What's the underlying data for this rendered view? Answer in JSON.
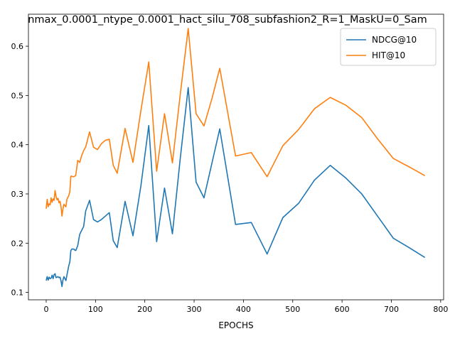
{
  "chart_data": {
    "type": "line",
    "title": "nmax_0.0001_ntype_0.0001_hact_silu_708_subfashion2_R=1_MaskU=0_Sam",
    "xlabel": "EPOCHS",
    "ylabel": "",
    "xlim": [
      -36,
      806
    ],
    "ylim": [
      0.085,
      0.665
    ],
    "xticks": [
      0,
      100,
      200,
      300,
      400,
      500,
      600,
      700,
      800
    ],
    "xtick_labels": [
      "0",
      "100",
      "200",
      "300",
      "400",
      "500",
      "600",
      "700",
      "800"
    ],
    "yticks": [
      0.1,
      0.2,
      0.3,
      0.4,
      0.5,
      0.6
    ],
    "ytick_labels": [
      "0.1",
      "0.2",
      "0.3",
      "0.4",
      "0.5",
      "0.6"
    ],
    "grid": false,
    "legend_position": "top-right",
    "series": [
      {
        "name": "NDCG@10",
        "color": "#1f77b4",
        "x": [
          0,
          2,
          4,
          6,
          8,
          10,
          12,
          14,
          16,
          18,
          20,
          22,
          24,
          26,
          28,
          30,
          32,
          34,
          36,
          38,
          40,
          42,
          44,
          46,
          48,
          50,
          52,
          54,
          56,
          58,
          60,
          64,
          68,
          72,
          76,
          80,
          88,
          96,
          104,
          112,
          120,
          128,
          136,
          144,
          160,
          176,
          192,
          208,
          224,
          240,
          256,
          272,
          288,
          304,
          320,
          336,
          352,
          384,
          416,
          448,
          480,
          512,
          544,
          576,
          608,
          640,
          672,
          704,
          736,
          768
        ],
        "y": [
          0.124,
          0.132,
          0.125,
          0.131,
          0.128,
          0.129,
          0.135,
          0.128,
          0.136,
          0.138,
          0.13,
          0.131,
          0.132,
          0.13,
          0.131,
          0.124,
          0.112,
          0.125,
          0.132,
          0.128,
          0.124,
          0.135,
          0.145,
          0.155,
          0.162,
          0.185,
          0.188,
          0.188,
          0.188,
          0.186,
          0.185,
          0.195,
          0.218,
          0.226,
          0.234,
          0.265,
          0.287,
          0.248,
          0.243,
          0.248,
          0.255,
          0.262,
          0.205,
          0.191,
          0.285,
          0.215,
          0.316,
          0.439,
          0.203,
          0.312,
          0.219,
          0.373,
          0.516,
          0.324,
          0.292,
          0.362,
          0.432,
          0.238,
          0.242,
          0.178,
          0.252,
          0.281,
          0.328,
          0.358,
          0.332,
          0.3,
          0.255,
          0.21,
          0.191,
          0.171
        ]
      },
      {
        "name": "HIT@10",
        "color": "#ff7f0e",
        "x": [
          0,
          2,
          4,
          6,
          8,
          10,
          12,
          14,
          16,
          18,
          20,
          22,
          24,
          26,
          28,
          30,
          32,
          34,
          36,
          38,
          40,
          42,
          44,
          46,
          48,
          50,
          52,
          54,
          56,
          58,
          60,
          64,
          68,
          72,
          76,
          80,
          88,
          96,
          104,
          112,
          120,
          128,
          136,
          144,
          160,
          176,
          192,
          208,
          224,
          240,
          256,
          272,
          288,
          304,
          320,
          336,
          352,
          384,
          416,
          448,
          480,
          512,
          544,
          576,
          608,
          640,
          672,
          704,
          736,
          768
        ],
        "y": [
          0.27,
          0.289,
          0.274,
          0.28,
          0.278,
          0.292,
          0.283,
          0.29,
          0.287,
          0.307,
          0.295,
          0.288,
          0.291,
          0.282,
          0.285,
          0.275,
          0.255,
          0.27,
          0.279,
          0.276,
          0.274,
          0.289,
          0.293,
          0.297,
          0.305,
          0.336,
          0.336,
          0.335,
          0.335,
          0.336,
          0.338,
          0.368,
          0.364,
          0.378,
          0.388,
          0.395,
          0.426,
          0.395,
          0.39,
          0.402,
          0.409,
          0.411,
          0.358,
          0.342,
          0.433,
          0.364,
          0.469,
          0.568,
          0.346,
          0.463,
          0.363,
          0.503,
          0.636,
          0.463,
          0.438,
          0.493,
          0.555,
          0.377,
          0.384,
          0.335,
          0.398,
          0.431,
          0.473,
          0.496,
          0.48,
          0.455,
          0.412,
          0.372,
          0.355,
          0.337
        ]
      }
    ]
  }
}
